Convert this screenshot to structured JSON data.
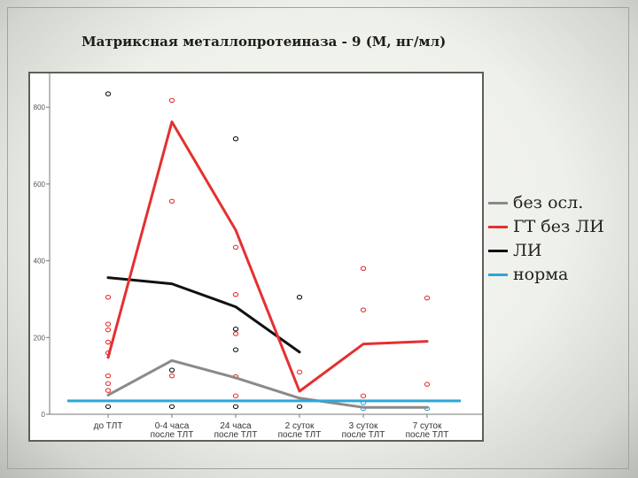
{
  "slide": {
    "title": "Матриксная металлопротеиназа - 9 (М, нг/мл)"
  },
  "legend": [
    {
      "label": "без осл.",
      "color": "#8a8a8a"
    },
    {
      "label": "ГТ без ЛИ",
      "color": "#e53030"
    },
    {
      "label": "ЛИ",
      "color": "#111111"
    },
    {
      "label": "норма",
      "color": "#2aa8d8"
    }
  ],
  "chart_data": {
    "type": "line",
    "title": "",
    "xlabel": "",
    "ylabel": "",
    "categories": [
      [
        "до ТЛТ",
        ""
      ],
      [
        "0-4 часа",
        "после ТЛТ"
      ],
      [
        "24 часа",
        "после ТЛТ"
      ],
      [
        "2 суток",
        "после ТЛТ"
      ],
      [
        "3 суток",
        "после ТЛТ"
      ],
      [
        "7 суток",
        "после ТЛТ"
      ]
    ],
    "ylim": [
      0,
      850
    ],
    "yticks": [
      0,
      200,
      400,
      600,
      800
    ],
    "grid": false,
    "series": [
      {
        "name": "без осл.",
        "color": "#8a8a8a",
        "values": [
          50,
          140,
          95,
          42,
          18,
          18
        ]
      },
      {
        "name": "ГТ без ЛИ",
        "color": "#e53030",
        "values": [
          148,
          762,
          480,
          60,
          183,
          190
        ]
      },
      {
        "name": "ЛИ",
        "color": "#111111",
        "values": [
          356,
          340,
          280,
          162,
          null,
          null
        ]
      },
      {
        "name": "норма",
        "color": "#2aa8d8",
        "values": [
          35,
          35,
          35,
          35,
          35,
          35
        ]
      }
    ],
    "points": [
      {
        "x": 0,
        "y": 835,
        "color": "#111111"
      },
      {
        "x": 0,
        "y": 305,
        "color": "#e53030"
      },
      {
        "x": 0,
        "y": 235,
        "color": "#e53030"
      },
      {
        "x": 0,
        "y": 220,
        "color": "#e53030"
      },
      {
        "x": 0,
        "y": 188,
        "color": "#e53030"
      },
      {
        "x": 0,
        "y": 160,
        "color": "#e53030"
      },
      {
        "x": 0,
        "y": 100,
        "color": "#e53030"
      },
      {
        "x": 0,
        "y": 80,
        "color": "#e53030"
      },
      {
        "x": 0,
        "y": 62,
        "color": "#e53030"
      },
      {
        "x": 0,
        "y": 20,
        "color": "#111111"
      },
      {
        "x": 1,
        "y": 818,
        "color": "#e53030"
      },
      {
        "x": 1,
        "y": 555,
        "color": "#e53030"
      },
      {
        "x": 1,
        "y": 115,
        "color": "#111111"
      },
      {
        "x": 1,
        "y": 100,
        "color": "#e53030"
      },
      {
        "x": 1,
        "y": 20,
        "color": "#111111"
      },
      {
        "x": 2,
        "y": 718,
        "color": "#111111"
      },
      {
        "x": 2,
        "y": 435,
        "color": "#e53030"
      },
      {
        "x": 2,
        "y": 312,
        "color": "#e53030"
      },
      {
        "x": 2,
        "y": 222,
        "color": "#111111"
      },
      {
        "x": 2,
        "y": 210,
        "color": "#e53030"
      },
      {
        "x": 2,
        "y": 168,
        "color": "#111111"
      },
      {
        "x": 2,
        "y": 98,
        "color": "#e53030"
      },
      {
        "x": 2,
        "y": 48,
        "color": "#e53030"
      },
      {
        "x": 2,
        "y": 20,
        "color": "#111111"
      },
      {
        "x": 3,
        "y": 305,
        "color": "#111111"
      },
      {
        "x": 3,
        "y": 110,
        "color": "#e53030"
      },
      {
        "x": 3,
        "y": 20,
        "color": "#111111"
      },
      {
        "x": 4,
        "y": 380,
        "color": "#e53030"
      },
      {
        "x": 4,
        "y": 272,
        "color": "#e53030"
      },
      {
        "x": 4,
        "y": 48,
        "color": "#e53030"
      },
      {
        "x": 4,
        "y": 30,
        "color": "#2aa8d8"
      },
      {
        "x": 4,
        "y": 15,
        "color": "#2aa8d8"
      },
      {
        "x": 5,
        "y": 303,
        "color": "#e53030"
      },
      {
        "x": 5,
        "y": 78,
        "color": "#e53030"
      },
      {
        "x": 5,
        "y": 15,
        "color": "#2aa8d8"
      }
    ]
  }
}
